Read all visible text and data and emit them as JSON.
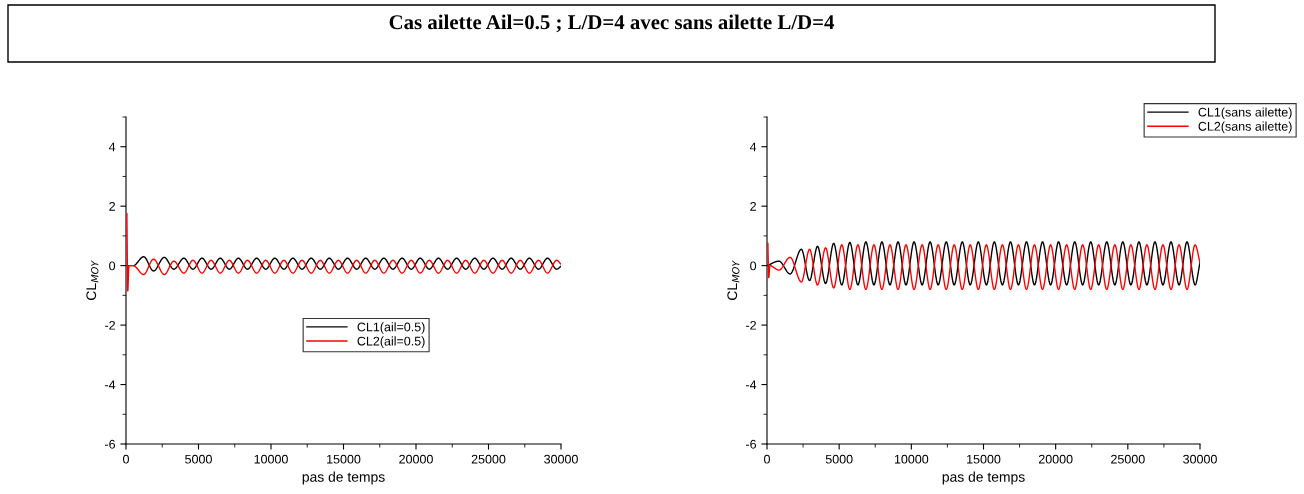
{
  "chart_data": [
    {
      "type": "line",
      "title": "Cas ailette Ail=0.5 ; L/D=4 avec sans ailette L/D=4",
      "xlabel": "pas de temps",
      "ylabel": "CL$_{MOY}$",
      "xlim": [
        0,
        30000
      ],
      "ylim": [
        -6,
        5
      ],
      "xticks": [
        0,
        {
          "value": 2500,
          "label": null
        },
        5000,
        {
          "value": 7500,
          "label": null
        },
        10000,
        {
          "value": 12500,
          "label": null
        },
        15000,
        {
          "value": 17500,
          "label": null
        },
        20000,
        {
          "value": 22500,
          "label": null
        },
        25000,
        {
          "value": 27500,
          "label": null
        },
        30000
      ],
      "yticks": [
        -6,
        {
          "value": -5,
          "label": null
        },
        -4,
        {
          "value": -3,
          "label": null
        },
        -2,
        {
          "value": -1,
          "label": null
        },
        0,
        {
          "value": 1,
          "label": null
        },
        2,
        {
          "value": 3,
          "label": null
        },
        4,
        {
          "value": 5,
          "label": null
        }
      ],
      "grid": false,
      "legend": "center",
      "line_style": "solid",
      "marker": "none",
      "series": [
        {
          "name": "CL1(ail=0.5)",
          "color": "#000000",
          "x": [
            0,
            500,
            1220,
            1900,
            2640,
            3300,
            3990,
            4620,
            5240,
            5870,
            6500,
            7130,
            7750,
            8380,
            9010,
            9640,
            10260,
            10890,
            11510,
            12140,
            12770,
            13400,
            14020,
            14650,
            15280,
            15910,
            16530,
            17160,
            17780,
            18410,
            19040,
            19670,
            20290,
            20920,
            21550,
            22180,
            22800,
            23430,
            24050,
            24680,
            25310,
            25940,
            26560,
            27190,
            27820,
            28450,
            29070,
            29700,
            30000
          ],
          "values": [
            0,
            0,
            0.3,
            -0.18,
            0.28,
            -0.12,
            0.25,
            -0.12,
            0.25,
            -0.12,
            0.25,
            -0.12,
            0.25,
            -0.12,
            0.25,
            -0.12,
            0.25,
            -0.12,
            0.25,
            -0.12,
            0.25,
            -0.12,
            0.25,
            -0.12,
            0.25,
            -0.12,
            0.25,
            -0.12,
            0.25,
            -0.12,
            0.25,
            -0.12,
            0.25,
            -0.12,
            0.25,
            -0.12,
            0.25,
            -0.12,
            0.25,
            -0.12,
            0.25,
            -0.12,
            0.25,
            -0.12,
            0.25,
            -0.12,
            0.25,
            -0.12,
            -0.02
          ]
        },
        {
          "name": "CL2(ail=0.5)",
          "color": "#ff0000",
          "x": [
            60,
            120,
            200,
            500,
            1220,
            1900,
            2640,
            3300,
            3990,
            4620,
            5240,
            5870,
            6500,
            7130,
            7750,
            8380,
            9010,
            9640,
            10260,
            10890,
            11510,
            12140,
            12770,
            13400,
            14020,
            14650,
            15280,
            15910,
            16530,
            17160,
            17780,
            18410,
            19040,
            19670,
            20290,
            20920,
            21550,
            22180,
            22800,
            23430,
            24050,
            24680,
            25310,
            25940,
            26560,
            27190,
            27820,
            28450,
            29070,
            29700,
            30000
          ],
          "values": [
            1.75,
            -0.85,
            0,
            0,
            -0.3,
            0.22,
            -0.3,
            0.15,
            -0.25,
            0.18,
            -0.25,
            0.18,
            -0.25,
            0.18,
            -0.25,
            0.18,
            -0.25,
            0.18,
            -0.25,
            0.18,
            -0.25,
            0.18,
            -0.25,
            0.18,
            -0.25,
            0.18,
            -0.25,
            0.18,
            -0.25,
            0.18,
            -0.25,
            0.18,
            -0.25,
            0.18,
            -0.25,
            0.18,
            -0.25,
            0.18,
            -0.25,
            0.18,
            -0.25,
            0.18,
            -0.25,
            0.18,
            -0.25,
            0.18,
            -0.25,
            0.18,
            -0.25,
            0.18,
            0.05
          ]
        }
      ]
    },
    {
      "type": "line",
      "xlabel": "pas de temps",
      "ylabel": "CL$_{MOY}$",
      "xlim": [
        0,
        30000
      ],
      "ylim": [
        -6,
        5
      ],
      "xticks": [
        0,
        {
          "value": 2500,
          "label": null
        },
        5000,
        {
          "value": 7500,
          "label": null
        },
        10000,
        {
          "value": 12500,
          "label": null
        },
        15000,
        {
          "value": 17500,
          "label": null
        },
        20000,
        {
          "value": 22500,
          "label": null
        },
        25000,
        {
          "value": 27500,
          "label": null
        },
        30000
      ],
      "yticks": [
        -6,
        {
          "value": -5,
          "label": null
        },
        -4,
        {
          "value": -3,
          "label": null
        },
        -2,
        {
          "value": -1,
          "label": null
        },
        0,
        {
          "value": 1,
          "label": null
        },
        2,
        {
          "value": 3,
          "label": null
        },
        4,
        {
          "value": 5,
          "label": null
        }
      ],
      "grid": false,
      "legend": "top right",
      "line_style": "solid",
      "marker": "none",
      "series": [
        {
          "name": "CL1(sans ailette)",
          "color": "#000000",
          "x": [
            0,
            830,
            1600,
            2380,
            2950,
            3500,
            4060,
            4620,
            5180,
            5740,
            6300,
            6850,
            7410,
            7960,
            8520,
            9080,
            9630,
            10190,
            10750,
            11300,
            11860,
            12420,
            12970,
            13530,
            14080,
            14640,
            15200,
            15750,
            16310,
            16870,
            17420,
            17980,
            18530,
            19090,
            19650,
            20200,
            20760,
            21320,
            21870,
            22430,
            22980,
            23540,
            24100,
            24650,
            25210,
            25770,
            26320,
            26880,
            27430,
            27990,
            28550,
            29100,
            29660,
            30000
          ],
          "values": [
            0,
            0.15,
            -0.28,
            0.55,
            -0.5,
            0.65,
            -0.6,
            0.75,
            -0.65,
            0.78,
            -0.65,
            0.8,
            -0.65,
            0.8,
            -0.65,
            0.8,
            -0.65,
            0.8,
            -0.65,
            0.8,
            -0.65,
            0.8,
            -0.65,
            0.8,
            -0.65,
            0.8,
            -0.65,
            0.8,
            -0.65,
            0.8,
            -0.65,
            0.8,
            -0.65,
            0.8,
            -0.65,
            0.8,
            -0.65,
            0.8,
            -0.65,
            0.8,
            -0.65,
            0.8,
            -0.65,
            0.8,
            -0.65,
            0.8,
            -0.65,
            0.8,
            -0.65,
            0.8,
            -0.65,
            0.8,
            -0.65,
            0.1
          ]
        },
        {
          "name": "CL2(sans ailette)",
          "color": "#ff0000",
          "x": [
            60,
            120,
            200,
            830,
            1600,
            2380,
            2950,
            3500,
            4060,
            4620,
            5180,
            5740,
            6300,
            6850,
            7410,
            7960,
            8520,
            9080,
            9630,
            10190,
            10750,
            11300,
            11860,
            12420,
            12970,
            13530,
            14080,
            14640,
            15200,
            15750,
            16310,
            16870,
            17420,
            17980,
            18530,
            19090,
            19650,
            20200,
            20760,
            21320,
            21870,
            22430,
            22980,
            23540,
            24100,
            24650,
            25210,
            25770,
            26320,
            26880,
            27430,
            27990,
            28550,
            29100,
            29660,
            30000
          ],
          "values": [
            0.75,
            -0.4,
            0,
            -0.15,
            0.28,
            -0.55,
            0.55,
            -0.65,
            0.6,
            -0.75,
            0.7,
            -0.8,
            0.7,
            -0.8,
            0.7,
            -0.8,
            0.7,
            -0.8,
            0.7,
            -0.8,
            0.7,
            -0.8,
            0.7,
            -0.8,
            0.7,
            -0.8,
            0.7,
            -0.8,
            0.7,
            -0.8,
            0.7,
            -0.8,
            0.7,
            -0.8,
            0.7,
            -0.8,
            0.7,
            -0.8,
            0.7,
            -0.8,
            0.7,
            -0.8,
            0.7,
            -0.8,
            0.7,
            -0.8,
            0.7,
            -0.8,
            0.7,
            -0.8,
            0.7,
            -0.8,
            0.7,
            -0.8,
            0.7,
            0.1
          ]
        }
      ]
    }
  ]
}
